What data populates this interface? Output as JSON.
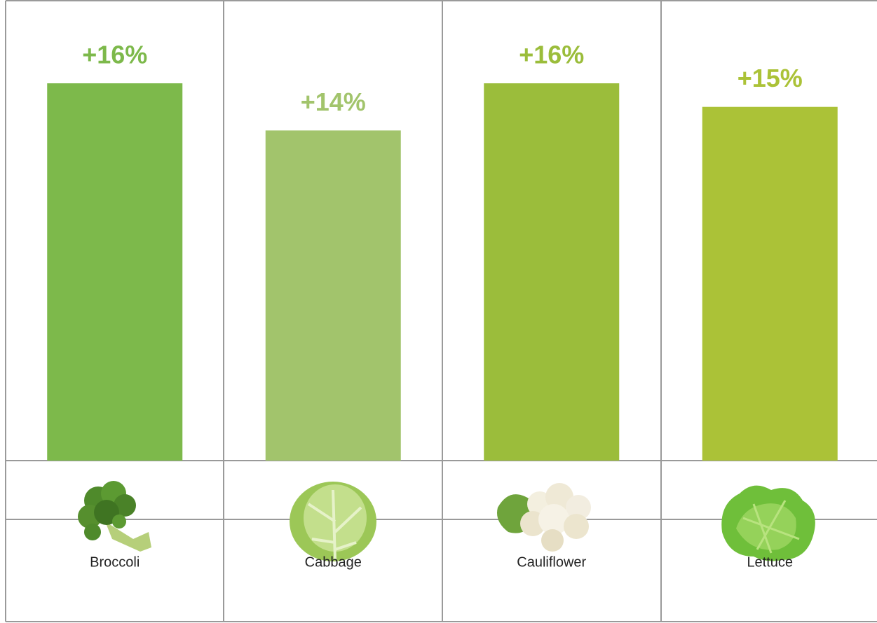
{
  "chart_data": {
    "type": "bar",
    "categories": [
      "Broccoli",
      "Cabbage",
      "Cauliflower",
      "Lettuce"
    ],
    "values": [
      16,
      14,
      16,
      15
    ],
    "value_labels": [
      "+16%",
      "+14%",
      "+16%",
      "+15%"
    ],
    "colors": [
      "#7db94b",
      "#a2c46c",
      "#9bbd3b",
      "#abc237"
    ]
  }
}
